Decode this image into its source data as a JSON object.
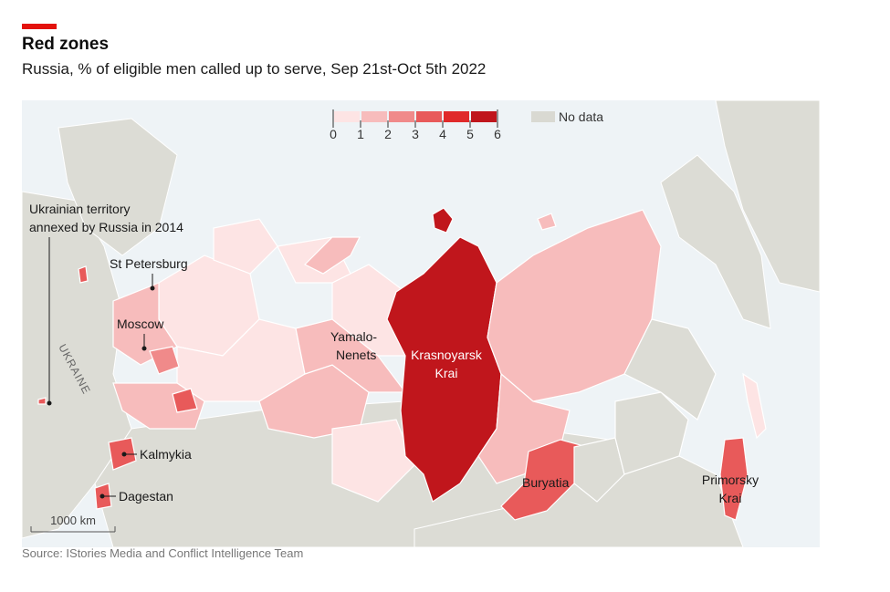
{
  "header": {
    "title": "Red zones",
    "subtitle": "Russia, % of eligible men called up to serve, Sep 21st-Oct 5th 2022"
  },
  "legend": {
    "ticks": [
      "0",
      "1",
      "2",
      "3",
      "4",
      "5",
      "6"
    ],
    "colors": [
      "#fde4e4",
      "#f7bcbc",
      "#f08a8a",
      "#e85a5a",
      "#e02a2a",
      "#c0161c"
    ],
    "no_data_label": "No data",
    "no_data_color": "#d9d9d2"
  },
  "labels": {
    "annexed_line1": "Ukrainian territory",
    "annexed_line2": "annexed by Russia in 2014",
    "st_petersburg": "St Petersburg",
    "moscow": "Moscow",
    "ukraine": "UKRAINE",
    "yamalo_line1": "Yamalo-",
    "yamalo_line2": "Nenets",
    "krasnoyarsk_line1": "Krasnoyarsk",
    "krasnoyarsk_line2": "Krai",
    "kalmykia": "Kalmykia",
    "dagestan": "Dagestan",
    "buryatia": "Buryatia",
    "primorsky_line1": "Primorsky",
    "primorsky_line2": "Krai",
    "scale": "1000 km"
  },
  "source": "Source: IStories Media and Conflict Intelligence Team"
}
